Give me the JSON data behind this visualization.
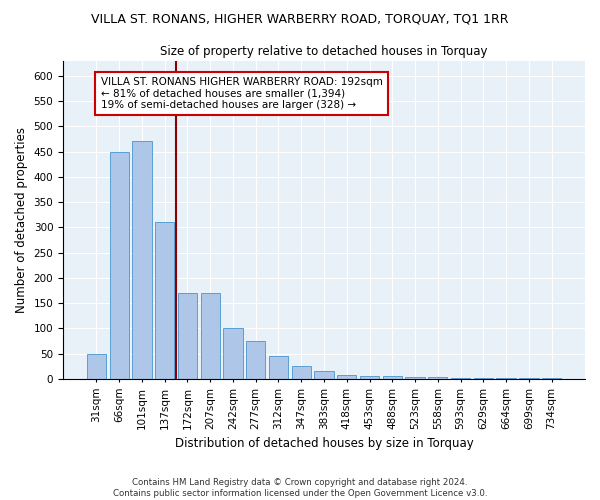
{
  "title": "VILLA ST. RONANS, HIGHER WARBERRY ROAD, TORQUAY, TQ1 1RR",
  "subtitle": "Size of property relative to detached houses in Torquay",
  "xlabel": "Distribution of detached houses by size in Torquay",
  "ylabel": "Number of detached properties",
  "categories": [
    "31sqm",
    "66sqm",
    "101sqm",
    "137sqm",
    "172sqm",
    "207sqm",
    "242sqm",
    "277sqm",
    "312sqm",
    "347sqm",
    "383sqm",
    "418sqm",
    "453sqm",
    "488sqm",
    "523sqm",
    "558sqm",
    "593sqm",
    "629sqm",
    "664sqm",
    "699sqm",
    "734sqm"
  ],
  "values": [
    50,
    450,
    470,
    310,
    170,
    170,
    100,
    75,
    45,
    25,
    15,
    8,
    5,
    5,
    4,
    4,
    2,
    1,
    2,
    1,
    2
  ],
  "bar_color": "#aec6e8",
  "bar_edge_color": "#5a9fd4",
  "vline_x_index": 3.5,
  "vline_color": "#8b0000",
  "annotation_text": "VILLA ST. RONANS HIGHER WARBERRY ROAD: 192sqm\n← 81% of detached houses are smaller (1,394)\n19% of semi-detached houses are larger (328) →",
  "annotation_box_color": "#ffffff",
  "annotation_box_edge_color": "#cc0000",
  "ylim": [
    0,
    630
  ],
  "yticks": [
    0,
    50,
    100,
    150,
    200,
    250,
    300,
    350,
    400,
    450,
    500,
    550,
    600
  ],
  "background_color": "#e8f0f8",
  "footer_line1": "Contains HM Land Registry data © Crown copyright and database right 2024.",
  "footer_line2": "Contains public sector information licensed under the Open Government Licence v3.0.",
  "title_fontsize": 9,
  "subtitle_fontsize": 8.5,
  "axis_fontsize": 8.5,
  "tick_fontsize": 7.5
}
